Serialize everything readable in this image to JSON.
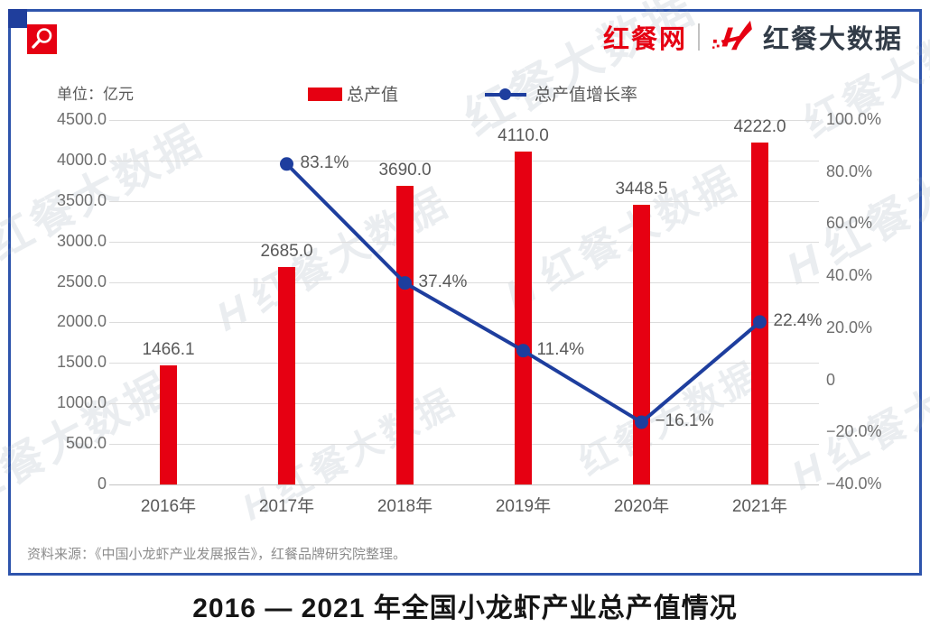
{
  "branding": {
    "site_logo_text": "红餐网",
    "bigdata_logo_text": "红餐大数据",
    "watermark_text": "红餐大数据"
  },
  "colors": {
    "bar_red": "#E60012",
    "line_blue": "#1E3E9E",
    "frame_blue": "#2E54AC",
    "corner_navy": "#1F3E9C",
    "gridline": "#DCDCDC",
    "label_gray": "#595959"
  },
  "chart_data": {
    "type": "bar",
    "title": "2016 — 2021 年全国小龙虾产业总产值情况",
    "unit_label": "单位：亿元",
    "categories": [
      "2016年",
      "2017年",
      "2018年",
      "2019年",
      "2020年",
      "2021年"
    ],
    "series": [
      {
        "name": "总产值",
        "type": "bar",
        "axis": "left",
        "color": "#E60012",
        "values": [
          1466.1,
          2685.0,
          3690.0,
          4110.0,
          3448.5,
          4222.0
        ],
        "labels": [
          "1466.1",
          "2685.0",
          "3690.0",
          "4110.0",
          "3448.5",
          "4222.0"
        ]
      },
      {
        "name": "总产值增长率",
        "type": "line",
        "axis": "right",
        "color": "#1E3E9E",
        "values": [
          null,
          83.1,
          37.4,
          11.4,
          -16.1,
          22.4
        ],
        "labels": [
          null,
          "83.1%",
          "37.4%",
          "11.4%",
          "−16.1%",
          "22.4%"
        ]
      }
    ],
    "left_axis": {
      "min": 0,
      "max": 4500,
      "step": 500,
      "ticks": [
        "4500.0",
        "4000.0",
        "3500.0",
        "3000.0",
        "2500.0",
        "2000.0",
        "1500.0",
        "1000.0",
        "500.0",
        "0"
      ]
    },
    "right_axis": {
      "min": -40,
      "max": 100,
      "step": 20,
      "ticks": [
        "100.0%",
        "80.0%",
        "60.0%",
        "40.0%",
        "20.0%",
        "0",
        "−20.0%",
        "−40.0%"
      ]
    },
    "grid": true,
    "legend_position": "top"
  },
  "footer": {
    "source_note": "资料来源：《中国小龙虾产业发展报告》，红餐品牌研究院整理。"
  }
}
